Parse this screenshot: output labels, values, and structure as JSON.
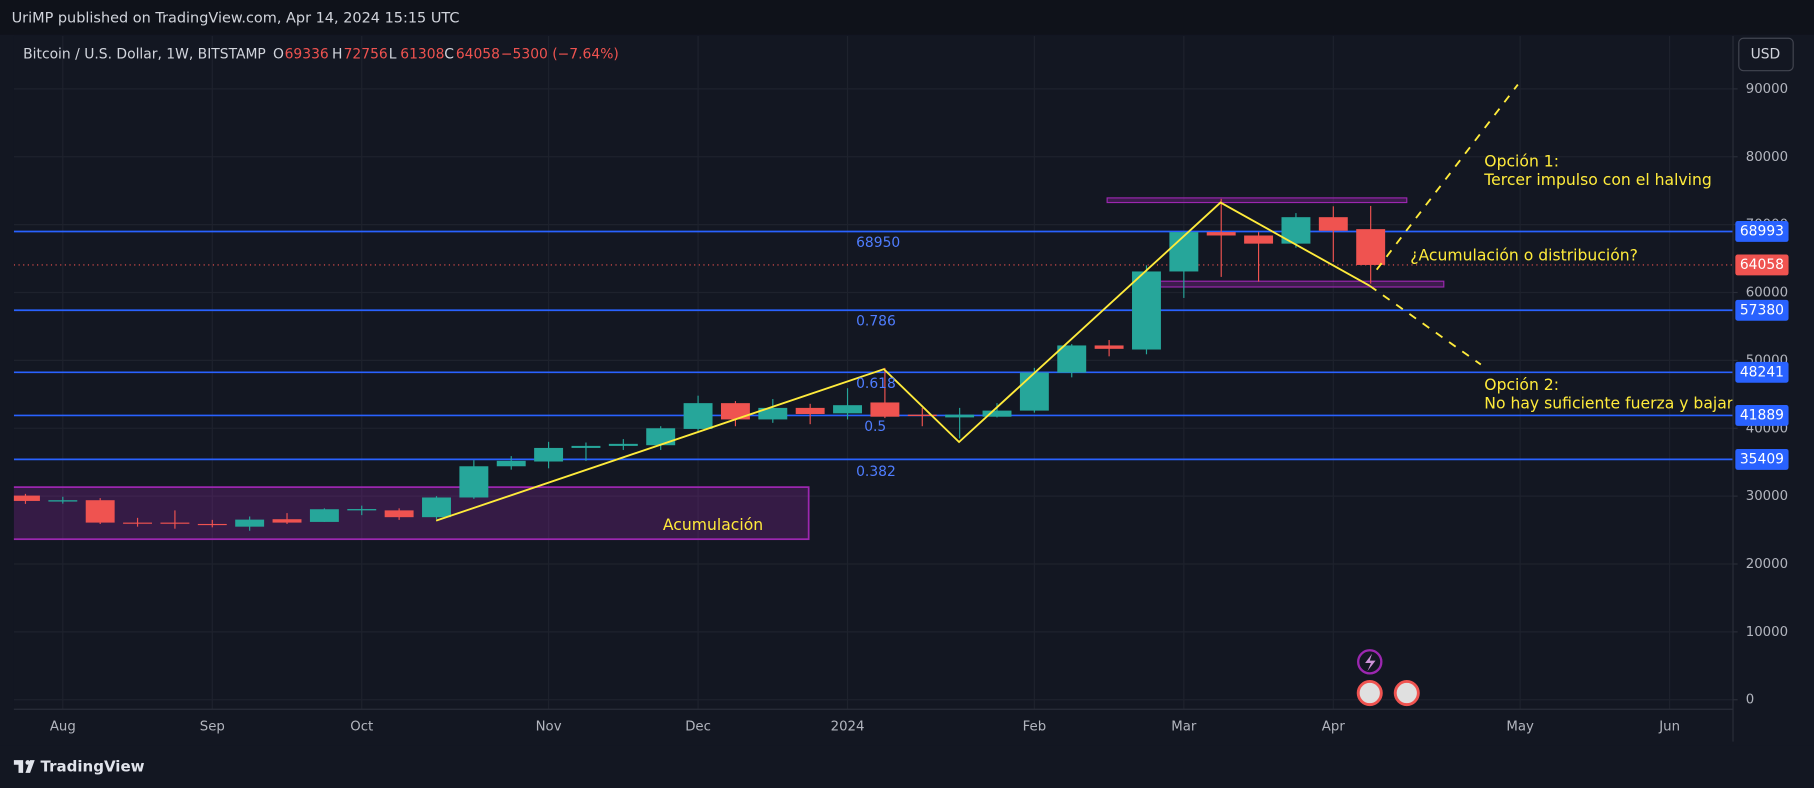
{
  "header": {
    "published": "UriMP published on TradingView.com, Apr 14, 2024 15:15 UTC",
    "currency": "USD",
    "brand": "TradingView"
  },
  "chart_data": {
    "type": "candlestick",
    "title": "Bitcoin / U.S. Dollar, 1W, BITSTAMP",
    "legend": {
      "o": "O",
      "h": "H",
      "l": "L",
      "c": "C",
      "change": "−5300 (−7.64%)"
    },
    "categories": [
      null,
      "Aug",
      null,
      null,
      null,
      "Sep",
      null,
      null,
      null,
      "Oct",
      null,
      null,
      null,
      null,
      "Nov",
      null,
      null,
      null,
      "Dec",
      null,
      null,
      null,
      "2024",
      null,
      null,
      null,
      null,
      "Feb",
      null,
      null,
      null,
      "Mar",
      null,
      null,
      null,
      "Apr",
      null,
      null,
      null,
      null,
      "May",
      null,
      null,
      null,
      "Jun",
      null
    ],
    "open": [
      30080,
      29200,
      29400,
      26100,
      26100,
      25900,
      25500,
      26600,
      26200,
      27900,
      27900,
      26900,
      29800,
      34400,
      35100,
      37100,
      37400,
      37500,
      39900,
      43700,
      41300,
      43000,
      42200,
      43800,
      42000,
      41600,
      41700,
      42600,
      48200,
      52200,
      51600,
      63100,
      68900,
      68400,
      67200,
      71100,
      69336,
      null,
      null,
      null,
      null,
      null,
      null,
      null,
      null,
      null
    ],
    "high": [
      30330,
      29900,
      29700,
      26800,
      27900,
      26500,
      27000,
      27500,
      28200,
      28600,
      28200,
      30000,
      35300,
      35900,
      38000,
      37900,
      38400,
      40300,
      44800,
      44000,
      44300,
      43600,
      45900,
      48900,
      43000,
      43000,
      43700,
      48900,
      52400,
      53000,
      64000,
      69000,
      73800,
      68900,
      71700,
      72700,
      72756,
      null,
      null,
      null,
      null,
      null,
      null,
      null,
      null,
      null
    ],
    "low": [
      28860,
      28900,
      25900,
      25500,
      25200,
      25400,
      24900,
      25900,
      26200,
      27200,
      26500,
      26600,
      29600,
      33900,
      34100,
      35200,
      36800,
      36800,
      39500,
      40300,
      40800,
      40600,
      41300,
      41500,
      40300,
      38500,
      41600,
      42300,
      47500,
      50600,
      50900,
      59200,
      62300,
      61600,
      66600,
      64500,
      61308,
      null,
      null,
      null,
      null,
      null,
      null,
      null,
      null,
      null
    ],
    "close": [
      29290,
      29400,
      26100,
      26000,
      26000,
      25800,
      26540,
      26100,
      28070,
      28100,
      26900,
      29800,
      34400,
      35200,
      37100,
      37400,
      37700,
      40000,
      43700,
      41300,
      43000,
      42100,
      43400,
      41700,
      41800,
      42000,
      42600,
      48200,
      52200,
      51700,
      63100,
      68900,
      68400,
      67200,
      71100,
      69100,
      64058,
      null,
      null,
      null,
      null,
      null,
      null,
      null,
      null,
      null
    ],
    "up_color": "#26a69a",
    "down_color": "#ef5350",
    "ylim": [
      -1400,
      97800
    ],
    "yticks": [
      0,
      10000,
      20000,
      30000,
      40000,
      50000,
      60000,
      70000,
      80000,
      90000
    ],
    "grid": true,
    "hlines": [
      68993,
      57380,
      48241,
      41889,
      35409
    ],
    "hline_color": "#2962ff",
    "fib_labels": [
      68950,
      0.786,
      0.618,
      0.5,
      0.382
    ],
    "annotations": [
      "Opción 1:",
      "Tercer impulso con el halving",
      "¿Acumulación o distribución?",
      "Opción 2:",
      "No hay suficiente fuerza y bajar",
      "Acumulación"
    ]
  }
}
